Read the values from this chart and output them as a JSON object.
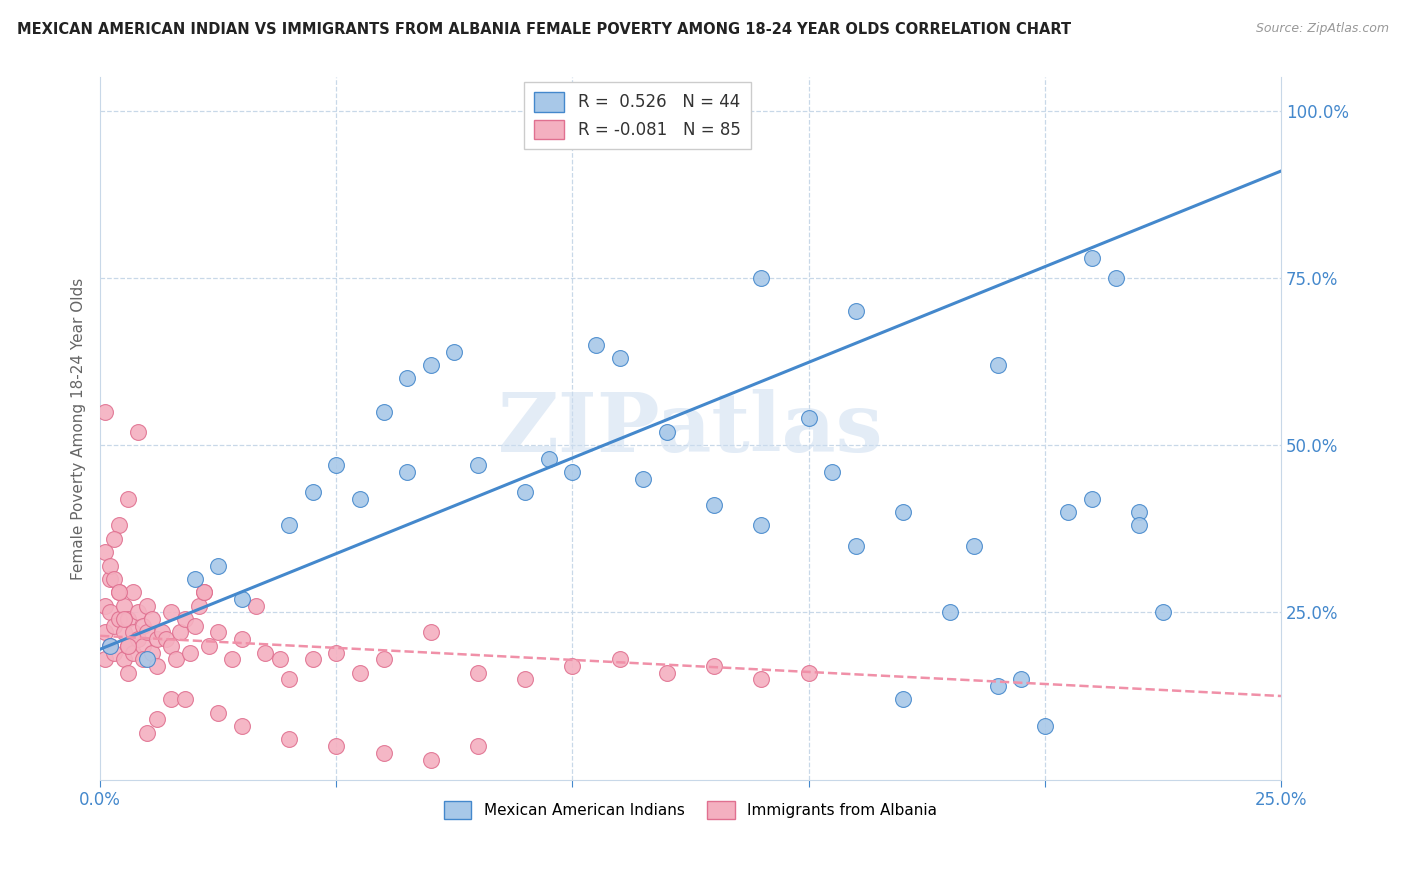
{
  "title": "MEXICAN AMERICAN INDIAN VS IMMIGRANTS FROM ALBANIA FEMALE POVERTY AMONG 18-24 YEAR OLDS CORRELATION CHART",
  "source": "Source: ZipAtlas.com",
  "ylabel": "Female Poverty Among 18-24 Year Olds",
  "ylabel_right_ticks": [
    "100.0%",
    "75.0%",
    "50.0%",
    "25.0%"
  ],
  "ylabel_right_vals": [
    1.0,
    0.75,
    0.5,
    0.25
  ],
  "watermark": "ZIPatlas",
  "legend_blue_r": "0.526",
  "legend_blue_n": "44",
  "legend_pink_r": "-0.081",
  "legend_pink_n": "85",
  "legend_blue_label": "Mexican American Indians",
  "legend_pink_label": "Immigrants from Albania",
  "blue_color": "#a8c8e8",
  "pink_color": "#f4b0c0",
  "trendline_blue_color": "#4488cc",
  "trendline_pink_color": "#f090a8",
  "background_color": "#ffffff",
  "grid_color": "#c8d8e8",
  "blue_trendline_x0": 0.0,
  "blue_trendline_y0": 0.195,
  "blue_trendline_x1": 0.25,
  "blue_trendline_y1": 0.91,
  "pink_trendline_x0": 0.0,
  "pink_trendline_y0": 0.215,
  "pink_trendline_x1": 0.25,
  "pink_trendline_y1": 0.125,
  "blue_scatter_x": [
    0.002,
    0.01,
    0.02,
    0.025,
    0.03,
    0.04,
    0.045,
    0.05,
    0.055,
    0.06,
    0.065,
    0.065,
    0.07,
    0.075,
    0.08,
    0.09,
    0.095,
    0.1,
    0.105,
    0.11,
    0.115,
    0.12,
    0.13,
    0.14,
    0.15,
    0.155,
    0.16,
    0.17,
    0.18,
    0.185,
    0.19,
    0.195,
    0.2,
    0.205,
    0.21,
    0.215,
    0.22,
    0.225,
    0.19,
    0.17,
    0.14,
    0.16,
    0.21,
    0.22
  ],
  "blue_scatter_y": [
    0.2,
    0.18,
    0.3,
    0.32,
    0.27,
    0.38,
    0.43,
    0.47,
    0.42,
    0.55,
    0.46,
    0.6,
    0.62,
    0.64,
    0.47,
    0.43,
    0.48,
    0.46,
    0.65,
    0.63,
    0.45,
    0.52,
    0.41,
    0.38,
    0.54,
    0.46,
    0.35,
    0.4,
    0.25,
    0.35,
    0.62,
    0.15,
    0.08,
    0.4,
    0.78,
    0.75,
    0.4,
    0.25,
    0.14,
    0.12,
    0.75,
    0.7,
    0.42,
    0.38
  ],
  "pink_scatter_x": [
    0.001,
    0.001,
    0.001,
    0.002,
    0.002,
    0.003,
    0.003,
    0.004,
    0.004,
    0.005,
    0.005,
    0.005,
    0.006,
    0.006,
    0.006,
    0.007,
    0.007,
    0.007,
    0.008,
    0.008,
    0.009,
    0.009,
    0.009,
    0.01,
    0.01,
    0.011,
    0.011,
    0.012,
    0.012,
    0.013,
    0.014,
    0.015,
    0.015,
    0.016,
    0.017,
    0.018,
    0.019,
    0.02,
    0.021,
    0.022,
    0.023,
    0.025,
    0.028,
    0.03,
    0.033,
    0.035,
    0.038,
    0.04,
    0.045,
    0.05,
    0.055,
    0.06,
    0.07,
    0.08,
    0.09,
    0.1,
    0.11,
    0.12,
    0.13,
    0.14,
    0.15,
    0.06,
    0.07,
    0.08,
    0.04,
    0.05,
    0.025,
    0.03,
    0.015,
    0.018,
    0.022,
    0.01,
    0.012,
    0.008,
    0.006,
    0.004,
    0.003,
    0.002,
    0.001,
    0.001,
    0.002,
    0.003,
    0.004,
    0.005,
    0.006
  ],
  "pink_scatter_y": [
    0.18,
    0.22,
    0.26,
    0.2,
    0.25,
    0.19,
    0.23,
    0.24,
    0.28,
    0.18,
    0.22,
    0.26,
    0.2,
    0.24,
    0.16,
    0.19,
    0.22,
    0.28,
    0.21,
    0.25,
    0.2,
    0.23,
    0.18,
    0.22,
    0.26,
    0.19,
    0.24,
    0.21,
    0.17,
    0.22,
    0.21,
    0.25,
    0.2,
    0.18,
    0.22,
    0.24,
    0.19,
    0.23,
    0.26,
    0.28,
    0.2,
    0.22,
    0.18,
    0.21,
    0.26,
    0.19,
    0.18,
    0.15,
    0.18,
    0.19,
    0.16,
    0.18,
    0.22,
    0.16,
    0.15,
    0.17,
    0.18,
    0.16,
    0.17,
    0.15,
    0.16,
    0.04,
    0.03,
    0.05,
    0.06,
    0.05,
    0.1,
    0.08,
    0.12,
    0.12,
    0.28,
    0.07,
    0.09,
    0.52,
    0.42,
    0.38,
    0.36,
    0.3,
    0.55,
    0.34,
    0.32,
    0.3,
    0.28,
    0.24,
    0.2
  ],
  "xlim": [
    0.0,
    0.25
  ],
  "ylim": [
    0.0,
    1.05
  ],
  "xticks": [
    0.0,
    0.05,
    0.1,
    0.15,
    0.2,
    0.25
  ],
  "xtick_labels": [
    "0.0%",
    "",
    "",
    "",
    "",
    "25.0%"
  ]
}
